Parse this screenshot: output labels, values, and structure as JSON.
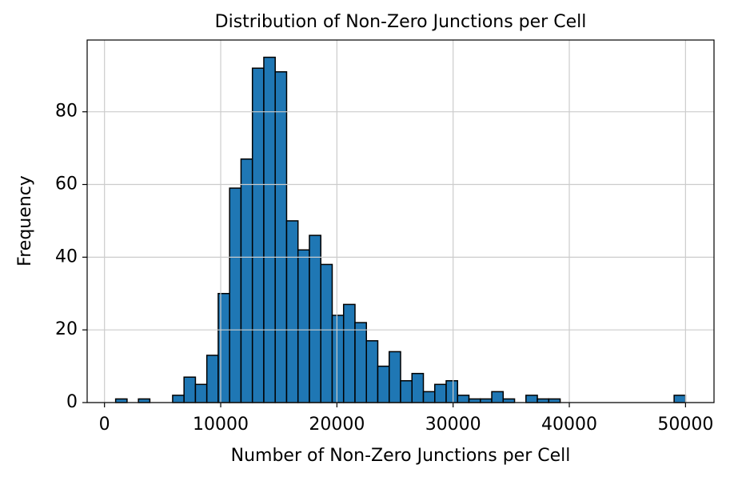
{
  "chart_data": {
    "type": "histogram",
    "title": "Distribution of Non-Zero Junctions per Cell",
    "x_label": "Number of Non-Zero Junctions per Cell",
    "y_label": "Frequency",
    "bins": [
      960,
      1940.8,
      2921.6,
      3902.4,
      4883.2,
      5864,
      6844.8,
      7825.6,
      8806.4,
      9787.2,
      10768,
      11748.8,
      12729.6,
      13710.4,
      14691.2,
      15672,
      16652.8,
      17633.6,
      18614.4,
      19595.2,
      20576,
      21556.8,
      22537.6,
      23518.4,
      24499.2,
      25480,
      26460.8,
      27441.6,
      28422.4,
      29403.2,
      30384,
      31364.8,
      32345.6,
      33326.4,
      34307.2,
      35288,
      36268.8,
      37249.6,
      38230.4,
      39211.2,
      40192,
      41172.8,
      42153.6,
      43134.4,
      44115.2,
      45096,
      46076.8,
      47057.6,
      48038.4,
      49019.2,
      50000
    ],
    "counts": [
      1,
      0,
      1,
      0,
      0,
      2,
      7,
      5,
      13,
      30,
      59,
      67,
      92,
      95,
      91,
      50,
      42,
      46,
      38,
      24,
      27,
      22,
      17,
      10,
      14,
      6,
      8,
      3,
      5,
      6,
      2,
      1,
      1,
      3,
      1,
      0,
      2,
      1,
      1,
      0,
      0,
      0,
      0,
      0,
      0,
      0,
      0,
      0,
      0,
      2
    ],
    "color": "#1f77b4",
    "edgecolor": "#000000",
    "xlim": [
      -1492,
      52452
    ],
    "ylim": [
      0,
      99.75
    ],
    "xticks": [
      0,
      10000,
      20000,
      30000,
      40000,
      50000
    ],
    "yticks": [
      0,
      20,
      40,
      60,
      80
    ],
    "grid": true
  }
}
